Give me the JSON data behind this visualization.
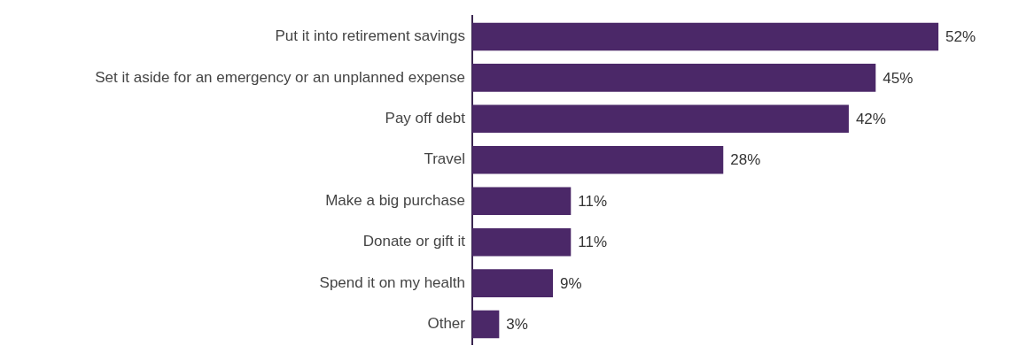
{
  "chart_data": {
    "type": "bar",
    "orientation": "horizontal",
    "categories": [
      "Put it into retirement savings",
      "Set it aside for an emergency or an unplanned expense",
      "Pay off debt",
      "Travel",
      "Make a big purchase",
      "Donate or gift it",
      "Spend it on my health",
      "Other"
    ],
    "values": [
      52,
      45,
      42,
      28,
      11,
      11,
      9,
      3
    ],
    "value_labels": [
      "52%",
      "45%",
      "42%",
      "28%",
      "11%",
      "11%",
      "9%",
      "3%"
    ],
    "color": "#4b2868",
    "tick_labels": "y",
    "legend": false
  }
}
